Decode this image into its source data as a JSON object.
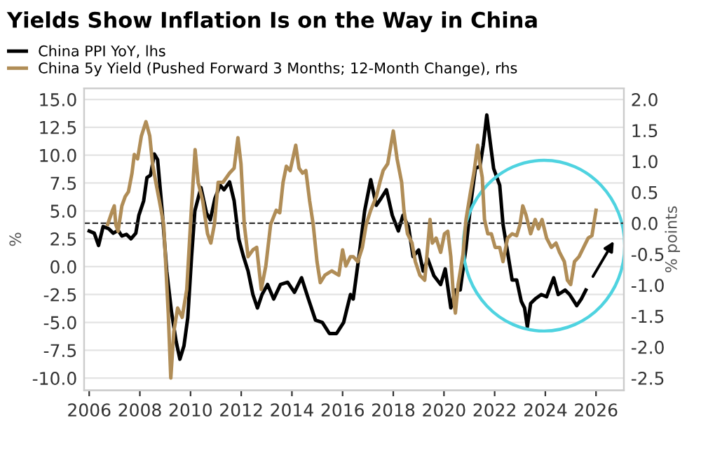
{
  "chart_data": {
    "type": "line",
    "title": "Yields Show Inflation Is on the Way in China",
    "ylabel": "%",
    "y2label": "% points",
    "xlim": [
      2005.8,
      2027.1
    ],
    "xticks": [
      2006,
      2008,
      2010,
      2012,
      2014,
      2016,
      2018,
      2020,
      2022,
      2024,
      2026
    ],
    "ylim": [
      -11.1,
      16
    ],
    "yticks": [
      {
        "value": -10,
        "label": "-10.0"
      },
      {
        "value": -7.5,
        "label": "-7.5"
      },
      {
        "value": -5,
        "label": "-5.0"
      },
      {
        "value": -2.5,
        "label": "-2.5"
      },
      {
        "value": 0,
        "label": "0.0"
      },
      {
        "value": 2.5,
        "label": "2.5"
      },
      {
        "value": 5,
        "label": "5.0"
      },
      {
        "value": 7.5,
        "label": "7.5"
      },
      {
        "value": 10,
        "label": "10.0"
      },
      {
        "value": 12.5,
        "label": "12.5"
      },
      {
        "value": 15,
        "label": "15.0"
      }
    ],
    "y2lim": [
      -2.7,
      2.18
    ],
    "y2ticks": [
      {
        "value": -2.5,
        "label": "-2.5"
      },
      {
        "value": -2,
        "label": "-2.0"
      },
      {
        "value": -1.5,
        "label": "-1.5"
      },
      {
        "value": -1,
        "label": "-1.0"
      },
      {
        "value": -0.5,
        "label": "-0.5"
      },
      {
        "value": 0,
        "label": "0.0"
      },
      {
        "value": 0.5,
        "label": "0.5"
      },
      {
        "value": 1,
        "label": "1.0"
      },
      {
        "value": 1.5,
        "label": "1.5"
      },
      {
        "value": 2,
        "label": "2.0"
      }
    ],
    "grid": "y",
    "legend": "top left",
    "line_style": "solid",
    "marker": "none",
    "ref_lines": [
      {
        "axis": "y2",
        "value": 0,
        "color": "#333333",
        "line_style": "dashed"
      }
    ],
    "series": [
      {
        "name": "China PPI YoY, lhs",
        "color": "#000000",
        "x": [
          2006.0,
          2006.2,
          2006.37,
          2006.55,
          2006.77,
          2006.95,
          2007.14,
          2007.29,
          2007.47,
          2007.65,
          2007.84,
          2007.96,
          2008.15,
          2008.28,
          2008.42,
          2008.57,
          2008.7,
          2008.88,
          2009.06,
          2009.25,
          2009.43,
          2009.58,
          2009.74,
          2009.89,
          2010.04,
          2010.17,
          2010.41,
          2010.63,
          2010.78,
          2010.96,
          2011.17,
          2011.32,
          2011.54,
          2011.72,
          2011.9,
          2012.09,
          2012.27,
          2012.46,
          2012.64,
          2012.82,
          2013.04,
          2013.28,
          2013.55,
          2013.83,
          2014.1,
          2014.38,
          2014.65,
          2014.93,
          2015.2,
          2015.48,
          2015.76,
          2016.04,
          2016.31,
          2016.42,
          2016.69,
          2016.87,
          2017.11,
          2017.33,
          2017.51,
          2017.73,
          2017.96,
          2018.2,
          2018.38,
          2018.6,
          2018.78,
          2019.0,
          2019.18,
          2019.36,
          2019.6,
          2019.87,
          2020.05,
          2020.27,
          2020.45,
          2020.64,
          2020.87,
          2021.05,
          2021.24,
          2021.42,
          2021.55,
          2021.69,
          2021.84,
          2021.96,
          2022.2,
          2022.33,
          2022.51,
          2022.69,
          2022.87,
          2023.05,
          2023.18,
          2023.29,
          2023.42,
          2023.6,
          2023.84,
          2024.05,
          2024.33,
          2024.51,
          2024.78,
          2024.96,
          2025.24,
          2025.42,
          2025.6
        ],
        "values": [
          3.2,
          3.0,
          1.9,
          3.6,
          3.4,
          3.0,
          3.25,
          2.75,
          2.9,
          2.5,
          3.0,
          4.6,
          5.9,
          8.0,
          8.2,
          10.1,
          9.6,
          5.0,
          -0.4,
          -4.1,
          -6.7,
          -8.3,
          -7.1,
          -4.6,
          0.9,
          5.0,
          7.1,
          4.8,
          4.2,
          6.1,
          7.3,
          6.9,
          7.6,
          5.9,
          2.5,
          0.9,
          -0.4,
          -2.5,
          -3.7,
          -2.5,
          -1.6,
          -2.9,
          -1.6,
          -1.4,
          -2.3,
          -1.0,
          -2.9,
          -4.8,
          -5.0,
          -6.0,
          -6.0,
          -5.0,
          -2.5,
          -2.9,
          1.7,
          5.0,
          7.8,
          5.5,
          6.1,
          6.9,
          4.6,
          3.2,
          4.6,
          3.6,
          0.9,
          1.5,
          -0.4,
          0.7,
          -0.8,
          -1.6,
          -0.2,
          -3.7,
          -2.1,
          -2.1,
          1.7,
          5.5,
          8.8,
          9.0,
          10.9,
          13.6,
          10.9,
          8.8,
          7.3,
          3.8,
          1.3,
          -1.2,
          -1.2,
          -3.1,
          -3.7,
          -5.4,
          -3.3,
          -2.9,
          -2.5,
          -2.7,
          -1.0,
          -2.5,
          -2.1,
          -2.5,
          -3.5,
          -2.9,
          -2.1
        ]
      },
      {
        "name": "China 5y Yield (Pushed Forward 3 Months; 12-Month Change), rhs",
        "color": "#b08d57",
        "axis": "y2",
        "x": [
          2006.73,
          2006.92,
          2006.99,
          2007.05,
          2007.14,
          2007.29,
          2007.42,
          2007.55,
          2007.69,
          2007.78,
          2007.91,
          2008.06,
          2008.24,
          2008.39,
          2008.5,
          2008.63,
          2008.77,
          2008.94,
          2009.12,
          2009.22,
          2009.34,
          2009.49,
          2009.67,
          2009.85,
          2010.03,
          2010.18,
          2010.3,
          2010.48,
          2010.67,
          2010.8,
          2010.94,
          2011.09,
          2011.28,
          2011.54,
          2011.72,
          2011.87,
          2011.99,
          2012.12,
          2012.27,
          2012.46,
          2012.61,
          2012.79,
          2012.97,
          2013.16,
          2013.38,
          2013.52,
          2013.65,
          2013.78,
          2013.93,
          2014.07,
          2014.15,
          2014.28,
          2014.42,
          2014.55,
          2014.7,
          2014.84,
          2014.99,
          2015.12,
          2015.3,
          2015.57,
          2015.85,
          2016.0,
          2016.13,
          2016.31,
          2016.42,
          2016.6,
          2016.78,
          2016.93,
          2017.11,
          2017.33,
          2017.47,
          2017.6,
          2017.78,
          2018.0,
          2018.15,
          2018.33,
          2018.42,
          2018.56,
          2018.74,
          2018.87,
          2019.05,
          2019.24,
          2019.33,
          2019.45,
          2019.54,
          2019.69,
          2019.87,
          2020.02,
          2020.15,
          2020.27,
          2020.38,
          2020.45,
          2020.56,
          2020.75,
          2020.87,
          2021.05,
          2021.18,
          2021.33,
          2021.42,
          2021.51,
          2021.6,
          2021.73,
          2021.87,
          2022.02,
          2022.2,
          2022.33,
          2022.51,
          2022.69,
          2022.87,
          2023.0,
          2023.11,
          2023.24,
          2023.42,
          2023.6,
          2023.73,
          2023.87,
          2024.05,
          2024.24,
          2024.42,
          2024.56,
          2024.75,
          2024.87,
          2025.0,
          2025.15,
          2025.33,
          2025.51,
          2025.69,
          2025.84,
          2026.0
        ],
        "values": [
          -0.02,
          0.21,
          0.28,
          -0.02,
          -0.13,
          0.28,
          0.43,
          0.51,
          0.81,
          1.11,
          1.04,
          1.41,
          1.64,
          1.41,
          0.96,
          0.66,
          0.36,
          -0.02,
          -1.45,
          -2.5,
          -1.75,
          -1.37,
          -1.52,
          -1.07,
          0.21,
          1.19,
          0.66,
          0.36,
          -0.17,
          -0.32,
          -0.02,
          0.66,
          0.66,
          0.81,
          0.89,
          1.38,
          0.96,
          -0.02,
          -0.54,
          -0.43,
          -0.39,
          -1.07,
          -0.69,
          -0.02,
          0.21,
          0.17,
          0.66,
          0.92,
          0.85,
          1.11,
          1.26,
          0.89,
          0.81,
          0.85,
          0.36,
          -0.02,
          -0.62,
          -0.96,
          -0.84,
          -0.77,
          -0.84,
          -0.43,
          -0.69,
          -0.54,
          -0.54,
          -0.62,
          -0.39,
          -0.02,
          0.21,
          0.43,
          0.66,
          0.85,
          0.96,
          1.49,
          1.04,
          0.66,
          0.21,
          -0.17,
          -0.32,
          -0.62,
          -0.84,
          -0.92,
          -0.51,
          0.06,
          -0.32,
          -0.24,
          -0.47,
          -0.17,
          -0.13,
          -0.54,
          -1.22,
          -1.45,
          -0.99,
          -0.51,
          0.06,
          0.51,
          0.81,
          1.26,
          0.96,
          0.74,
          0.06,
          -0.17,
          -0.17,
          -0.39,
          -0.39,
          -0.62,
          -0.24,
          -0.17,
          -0.2,
          -0.02,
          0.28,
          0.13,
          -0.17,
          0.06,
          -0.09,
          0.06,
          -0.24,
          -0.39,
          -0.32,
          -0.47,
          -0.62,
          -0.92,
          -0.99,
          -0.62,
          -0.54,
          -0.39,
          -0.24,
          -0.2,
          0.21
        ]
      }
    ]
  }
}
